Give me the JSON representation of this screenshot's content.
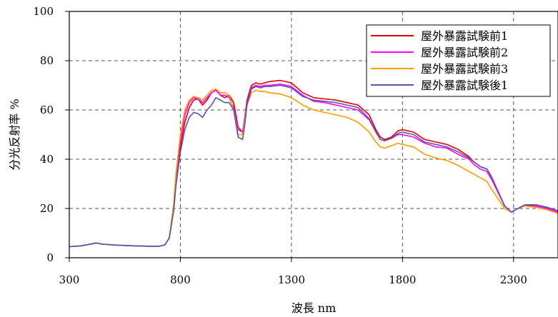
{
  "chart_data": {
    "type": "line",
    "title": "",
    "xlabel": "波長 nm",
    "ylabel": "分光反射率 %",
    "xlim": [
      300,
      2500
    ],
    "ylim": [
      0,
      100
    ],
    "xticks": [
      300,
      800,
      1300,
      1800,
      2300
    ],
    "yticks": [
      0,
      20,
      40,
      60,
      80,
      100
    ],
    "grid": "dashed, at 800/1300/1800/2300 and 20/40/60/80",
    "legend_position": "top-right",
    "x": [
      300,
      350,
      400,
      420,
      450,
      500,
      550,
      600,
      650,
      700,
      730,
      750,
      770,
      780,
      790,
      800,
      820,
      840,
      860,
      880,
      900,
      920,
      940,
      960,
      980,
      1000,
      1020,
      1040,
      1060,
      1080,
      1090,
      1100,
      1120,
      1140,
      1160,
      1180,
      1200,
      1250,
      1300,
      1350,
      1400,
      1450,
      1500,
      1550,
      1600,
      1650,
      1680,
      1700,
      1720,
      1750,
      1780,
      1800,
      1850,
      1900,
      1950,
      2000,
      2050,
      2100,
      2120,
      2150,
      2180,
      2200,
      2230,
      2260,
      2290,
      2310,
      2330,
      2350,
      2400,
      2450,
      2500
    ],
    "series": [
      {
        "name": "屋外暴露試験前1",
        "color": "#e00000",
        "values": [
          4.5,
          4.8,
          5.6,
          6.0,
          5.5,
          5.2,
          5.0,
          4.8,
          4.7,
          4.6,
          5.2,
          8.0,
          20.0,
          30.0,
          38.0,
          45.0,
          55.0,
          61.0,
          64.0,
          64.5,
          62.0,
          64.0,
          67.0,
          68.0,
          66.0,
          65.0,
          66.0,
          63.0,
          53.0,
          51.0,
          57.0,
          64.0,
          70.0,
          71.0,
          70.5,
          71.0,
          71.5,
          72.0,
          71.0,
          67.0,
          65.0,
          64.5,
          64.0,
          63.0,
          62.0,
          58.0,
          52.0,
          49.0,
          48.0,
          49.0,
          51.5,
          52.0,
          51.0,
          48.0,
          47.0,
          46.0,
          44.0,
          41.0,
          39.0,
          37.0,
          36.0,
          33.0,
          27.0,
          21.0,
          18.5,
          19.5,
          20.5,
          21.0,
          21.5,
          20.5,
          19.0
        ]
      },
      {
        "name": "屋外暴露試験前2",
        "color": "#ff00ff",
        "values": [
          4.5,
          4.8,
          5.6,
          6.0,
          5.5,
          5.2,
          5.0,
          4.8,
          4.7,
          4.6,
          5.2,
          8.0,
          21.0,
          32.0,
          40.0,
          48.0,
          58.0,
          63.0,
          65.0,
          64.5,
          63.0,
          65.0,
          67.0,
          68.0,
          66.0,
          66.0,
          65.0,
          61.0,
          52.0,
          51.0,
          57.0,
          63.0,
          69.0,
          70.0,
          69.5,
          70.0,
          70.0,
          70.5,
          69.5,
          66.0,
          63.5,
          63.0,
          62.0,
          61.0,
          60.0,
          56.0,
          51.0,
          48.0,
          47.5,
          48.5,
          50.0,
          50.0,
          49.0,
          46.5,
          45.0,
          44.5,
          42.0,
          40.0,
          38.0,
          36.0,
          35.0,
          32.0,
          26.5,
          21.0,
          18.5,
          19.5,
          20.5,
          21.0,
          21.0,
          20.0,
          18.5
        ]
      },
      {
        "name": "屋外暴露試験前3",
        "color": "#ff9900",
        "values": [
          4.5,
          4.8,
          5.6,
          6.0,
          5.5,
          5.2,
          5.0,
          4.8,
          4.7,
          4.6,
          5.2,
          8.0,
          22.0,
          34.0,
          42.0,
          50.0,
          60.0,
          64.0,
          65.5,
          65.0,
          64.0,
          66.0,
          68.0,
          68.5,
          67.0,
          67.0,
          66.0,
          60.0,
          50.0,
          50.0,
          56.0,
          62.0,
          67.0,
          68.0,
          67.5,
          67.5,
          67.0,
          66.5,
          65.0,
          62.0,
          60.0,
          59.0,
          58.0,
          57.0,
          55.0,
          51.0,
          47.0,
          45.0,
          44.5,
          45.5,
          46.5,
          46.0,
          45.0,
          42.0,
          40.5,
          39.5,
          37.5,
          35.0,
          34.0,
          32.5,
          31.0,
          28.0,
          24.0,
          20.0,
          18.5,
          19.5,
          20.5,
          21.0,
          20.5,
          19.5,
          18.0
        ]
      },
      {
        "name": "屋外暴露試験後1",
        "color": "#5555aa",
        "values": [
          4.5,
          4.8,
          5.6,
          6.0,
          5.5,
          5.2,
          5.0,
          4.8,
          4.7,
          4.6,
          5.2,
          8.0,
          19.0,
          29.0,
          36.0,
          43.0,
          52.0,
          57.0,
          59.0,
          58.5,
          57.0,
          60.0,
          62.0,
          65.0,
          64.0,
          63.0,
          63.0,
          60.0,
          49.0,
          48.0,
          54.0,
          62.0,
          68.5,
          69.5,
          69.0,
          69.5,
          69.5,
          70.0,
          69.0,
          65.5,
          64.0,
          63.5,
          63.0,
          62.0,
          61.0,
          56.5,
          51.0,
          48.0,
          47.5,
          48.5,
          50.5,
          51.0,
          50.0,
          47.0,
          46.0,
          45.0,
          43.0,
          40.5,
          39.0,
          37.0,
          36.0,
          33.0,
          27.0,
          21.0,
          18.5,
          19.5,
          20.5,
          21.5,
          21.5,
          20.5,
          19.0
        ]
      }
    ]
  }
}
